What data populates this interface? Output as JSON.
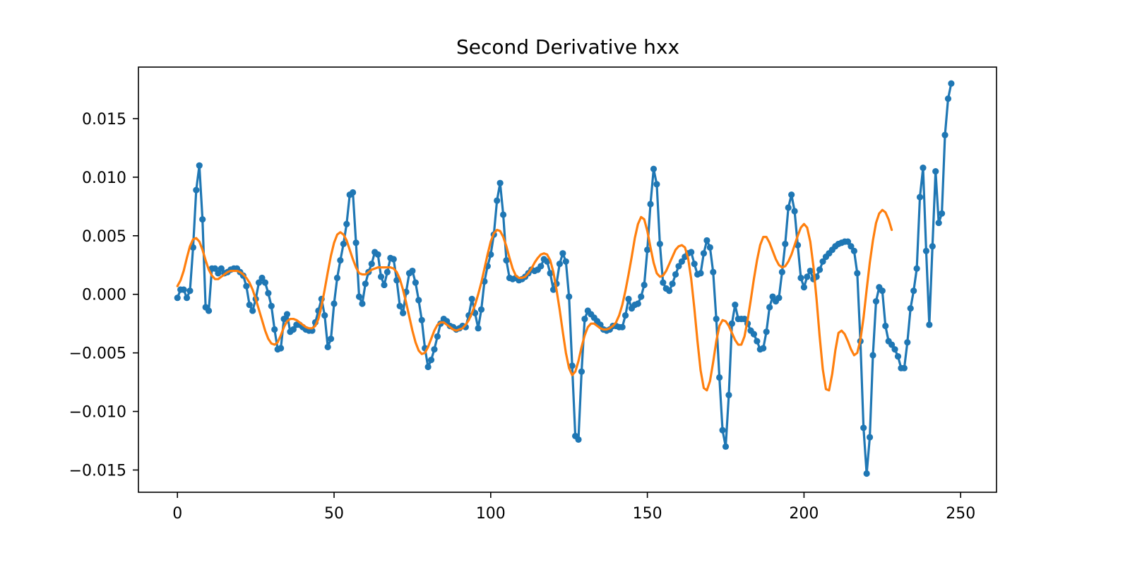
{
  "chart_data": {
    "type": "line",
    "title": "Second Derivative hxx",
    "xlabel": "",
    "ylabel": "",
    "xlim": [
      -12.45,
      261.45
    ],
    "ylim": [
      -0.0169,
      0.0194
    ],
    "x_ticks": [
      0,
      50,
      100,
      150,
      200,
      250
    ],
    "x_tick_labels": [
      "0",
      "50",
      "100",
      "150",
      "200",
      "250"
    ],
    "y_ticks": [
      -0.015,
      -0.01,
      -0.005,
      0.0,
      0.005,
      0.01,
      0.015
    ],
    "y_tick_labels": [
      "−0.015",
      "−0.010",
      "−0.005",
      "0.000",
      "0.005",
      "0.010",
      "0.015"
    ],
    "grid": false,
    "legend": "none",
    "colors": {
      "raw": "#1f77b4",
      "smooth": "#ff7f0e"
    },
    "series": [
      {
        "x_start": 0,
        "x_step": 1,
        "marker": "circle",
        "values": [
          -0.0003,
          0.0004,
          0.0004,
          -0.0003,
          0.0003,
          0.004,
          0.0089,
          0.011,
          0.0064,
          -0.0011,
          -0.0014,
          0.0022,
          0.0022,
          0.0018,
          0.0022,
          0.0018,
          0.0019,
          0.0021,
          0.0022,
          0.0022,
          0.0019,
          0.0016,
          0.0007,
          -0.0009,
          -0.0014,
          -0.0004,
          0.001,
          0.0014,
          0.001,
          0.0001,
          -0.001,
          -0.003,
          -0.0047,
          -0.0046,
          -0.0021,
          -0.0017,
          -0.0032,
          -0.003,
          -0.0026,
          -0.0026,
          -0.0028,
          -0.003,
          -0.0031,
          -0.0031,
          -0.0024,
          -0.0014,
          -0.0004,
          -0.0018,
          -0.0045,
          -0.0038,
          -0.0008,
          0.0014,
          0.0029,
          0.0043,
          0.006,
          0.0085,
          0.0087,
          0.0044,
          -0.0002,
          -0.0008,
          0.0009,
          0.0019,
          0.0026,
          0.0036,
          0.0034,
          0.0015,
          0.0008,
          0.0019,
          0.0031,
          0.003,
          0.0012,
          -0.001,
          -0.0016,
          0.0002,
          0.0018,
          0.002,
          0.001,
          -0.0005,
          -0.0022,
          -0.0046,
          -0.0062,
          -0.0056,
          -0.0047,
          -0.0036,
          -0.0025,
          -0.0021,
          -0.0023,
          -0.0027,
          -0.0028,
          -0.003,
          -0.0029,
          -0.0027,
          -0.0028,
          -0.0018,
          -0.0004,
          -0.0016,
          -0.0029,
          -0.0013,
          0.0011,
          0.0024,
          0.0034,
          0.0051,
          0.008,
          0.0095,
          0.0068,
          0.0029,
          0.0014,
          0.0013,
          0.0014,
          0.0012,
          0.0013,
          0.0015,
          0.0018,
          0.0021,
          0.002,
          0.0021,
          0.0024,
          0.003,
          0.0028,
          0.0018,
          0.0004,
          0.0009,
          0.0026,
          0.0035,
          0.0028,
          -0.0002,
          -0.0061,
          -0.0121,
          -0.0124,
          -0.0066,
          -0.0021,
          -0.0014,
          -0.0017,
          -0.002,
          -0.0023,
          -0.0026,
          -0.003,
          -0.0031,
          -0.003,
          -0.0027,
          -0.0027,
          -0.0028,
          -0.0028,
          -0.0018,
          -0.0004,
          -0.0012,
          -0.0009,
          -0.0008,
          -0.0002,
          0.0008,
          0.0038,
          0.0077,
          0.0107,
          0.0094,
          0.0043,
          0.001,
          0.0005,
          0.0003,
          0.0009,
          0.0017,
          0.0024,
          0.0028,
          0.0032,
          0.0035,
          0.0036,
          0.0026,
          0.0017,
          0.0018,
          0.0035,
          0.0046,
          0.004,
          0.0019,
          -0.0021,
          -0.0071,
          -0.0116,
          -0.013,
          -0.0086,
          -0.0025,
          -0.0009,
          -0.0021,
          -0.0021,
          -0.0021,
          -0.0025,
          -0.0031,
          -0.0034,
          -0.004,
          -0.0047,
          -0.0046,
          -0.0032,
          -0.0011,
          -0.0002,
          -0.0006,
          -0.0003,
          0.0019,
          0.0043,
          0.0074,
          0.0085,
          0.0071,
          0.0042,
          0.0014,
          0.0006,
          0.0015,
          0.002,
          0.0013,
          0.0015,
          0.0021,
          0.0028,
          0.0032,
          0.0035,
          0.0038,
          0.0041,
          0.0043,
          0.0044,
          0.0045,
          0.0045,
          0.0041,
          0.0037,
          0.0018,
          -0.004,
          -0.0114,
          -0.0153,
          -0.0122,
          -0.0052,
          -0.0006,
          0.0006,
          0.0003,
          -0.0027,
          -0.004,
          -0.0043,
          -0.0047,
          -0.0053,
          -0.0063,
          -0.0063,
          -0.0041,
          -0.0012,
          0.0003,
          0.0022,
          0.0083,
          0.0108,
          0.0037,
          -0.0026,
          0.0041,
          0.0105,
          0.0061,
          0.0069,
          0.0136,
          0.0167,
          0.018
        ]
      },
      {
        "x_start": 0,
        "x_step": 1,
        "marker": "none",
        "values": [
          0.0007,
          0.0012,
          0.002,
          0.0031,
          0.0041,
          0.0047,
          0.0048,
          0.0045,
          0.0038,
          0.0029,
          0.0021,
          0.0016,
          0.0013,
          0.0013,
          0.0015,
          0.0017,
          0.0019,
          0.002,
          0.002,
          0.002,
          0.0019,
          0.0017,
          0.0014,
          0.001,
          0.0004,
          -0.0004,
          -0.0013,
          -0.0022,
          -0.0031,
          -0.0038,
          -0.0042,
          -0.0043,
          -0.0041,
          -0.0035,
          -0.0028,
          -0.0023,
          -0.0021,
          -0.0021,
          -0.0022,
          -0.0024,
          -0.0026,
          -0.0028,
          -0.0029,
          -0.0029,
          -0.0027,
          -0.0021,
          -0.001,
          0.0004,
          0.0019,
          0.0033,
          0.0044,
          0.0051,
          0.0053,
          0.0051,
          0.0046,
          0.0038,
          0.003,
          0.0023,
          0.0018,
          0.0017,
          0.0017,
          0.0019,
          0.0021,
          0.0022,
          0.0023,
          0.0023,
          0.0023,
          0.0023,
          0.0023,
          0.0022,
          0.0019,
          0.0013,
          0.0004,
          -0.0007,
          -0.0019,
          -0.0031,
          -0.0041,
          -0.0048,
          -0.0051,
          -0.005,
          -0.0045,
          -0.0038,
          -0.0031,
          -0.0026,
          -0.0024,
          -0.0024,
          -0.0026,
          -0.0028,
          -0.003,
          -0.0031,
          -0.003,
          -0.0029,
          -0.0026,
          -0.0022,
          -0.0016,
          -0.0009,
          0.0,
          0.001,
          0.0022,
          0.0034,
          0.0045,
          0.0052,
          0.0055,
          0.0054,
          0.0049,
          0.0041,
          0.0031,
          0.0022,
          0.0016,
          0.0014,
          0.0014,
          0.0015,
          0.0018,
          0.0022,
          0.0027,
          0.0031,
          0.0034,
          0.0035,
          0.0034,
          0.0029,
          0.0019,
          0.0004,
          -0.0013,
          -0.0032,
          -0.005,
          -0.0063,
          -0.0069,
          -0.0066,
          -0.0057,
          -0.0045,
          -0.0035,
          -0.0028,
          -0.0025,
          -0.0025,
          -0.0027,
          -0.0029,
          -0.003,
          -0.003,
          -0.0029,
          -0.0027,
          -0.0024,
          -0.0018,
          -0.0009,
          0.0003,
          0.0017,
          0.0032,
          0.0048,
          0.006,
          0.0066,
          0.0064,
          0.0054,
          0.004,
          0.0027,
          0.0018,
          0.0015,
          0.0016,
          0.002,
          0.0026,
          0.0032,
          0.0038,
          0.0041,
          0.0042,
          0.004,
          0.0031,
          0.0013,
          -0.0012,
          -0.004,
          -0.0065,
          -0.008,
          -0.0082,
          -0.0074,
          -0.0058,
          -0.004,
          -0.0027,
          -0.0022,
          -0.0023,
          -0.0027,
          -0.0033,
          -0.0039,
          -0.0043,
          -0.0043,
          -0.0036,
          -0.0022,
          -0.0005,
          0.0013,
          0.0029,
          0.0042,
          0.0049,
          0.0049,
          0.0044,
          0.0037,
          0.003,
          0.0025,
          0.0023,
          0.0024,
          0.0028,
          0.0034,
          0.0042,
          0.005,
          0.0057,
          0.006,
          0.0057,
          0.0045,
          0.0024,
          -0.0004,
          -0.0036,
          -0.0064,
          -0.0081,
          -0.0082,
          -0.0068,
          -0.0048,
          -0.0033,
          -0.0031,
          -0.0034,
          -0.004,
          -0.0047,
          -0.0052,
          -0.005,
          -0.0039,
          -0.002,
          0.0004,
          0.0027,
          0.0046,
          0.0061,
          0.0069,
          0.0072,
          0.007,
          0.0064,
          0.0055
        ]
      }
    ]
  }
}
